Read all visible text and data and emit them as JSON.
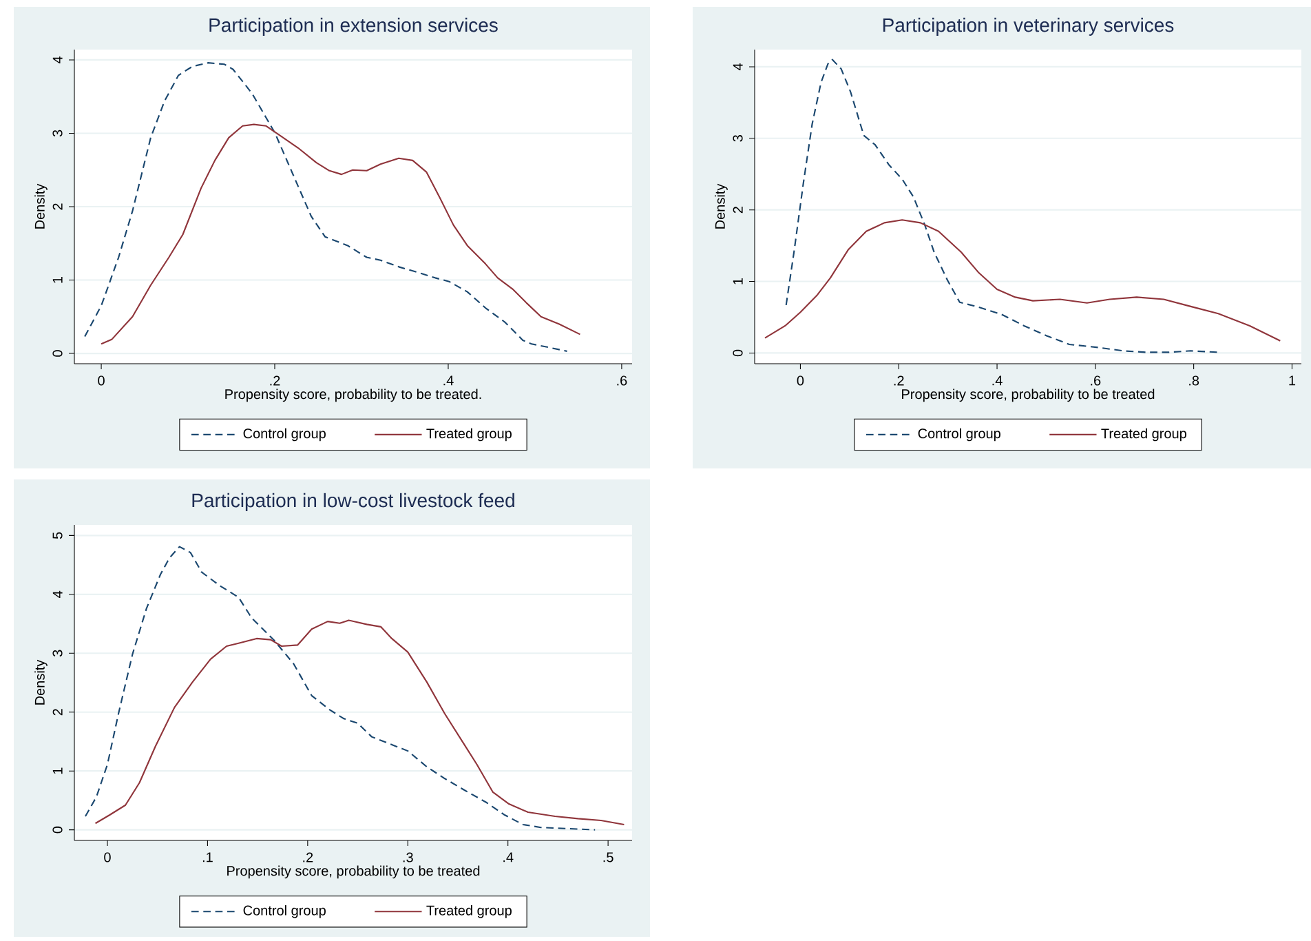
{
  "chart_data": [
    {
      "type": "line",
      "title": "Participation in extension services",
      "xlabel": "Propensity score, probability to be treated.",
      "ylabel": "Density",
      "xlim": [
        -0.031,
        0.612
      ],
      "ylim": [
        -0.14,
        4.14
      ],
      "xticks": [
        0,
        {
          "value": 0.2,
          "label": ".2"
        },
        {
          "value": 0.4,
          "label": ".4"
        },
        {
          "value": 0.6,
          "label": ".6"
        }
      ],
      "yticks": [
        0,
        1,
        2,
        3,
        4
      ],
      "grid": "y",
      "legend": "bottom",
      "marker": "none",
      "series": [
        {
          "name": "Control group",
          "color": "#1a476f",
          "line_style": "dashed",
          "x": [
            -0.019,
            0,
            0.02,
            0.036,
            0.057,
            0.073,
            0.089,
            0.105,
            0.123,
            0.142,
            0.152,
            0.174,
            0.2,
            0.221,
            0.242,
            0.258,
            0.284,
            0.306,
            0.322,
            0.343,
            0.369,
            0.385,
            0.401,
            0.422,
            0.443,
            0.465,
            0.486,
            0.496,
            0.517,
            0.537
          ],
          "values": [
            0.23,
            0.65,
            1.31,
            1.94,
            2.94,
            3.44,
            3.79,
            3.91,
            3.96,
            3.94,
            3.87,
            3.54,
            3.01,
            2.44,
            1.87,
            1.59,
            1.47,
            1.31,
            1.27,
            1.18,
            1.09,
            1.03,
            0.98,
            0.84,
            0.62,
            0.43,
            0.18,
            0.13,
            0.08,
            0.03
          ]
        },
        {
          "name": "Treated group",
          "color": "#90353b",
          "line_style": "solid",
          "x": [
            0,
            0.012,
            0.036,
            0.057,
            0.078,
            0.094,
            0.115,
            0.131,
            0.147,
            0.163,
            0.176,
            0.19,
            0.206,
            0.227,
            0.248,
            0.263,
            0.277,
            0.29,
            0.306,
            0.322,
            0.343,
            0.359,
            0.375,
            0.39,
            0.406,
            0.422,
            0.443,
            0.457,
            0.475,
            0.491,
            0.507,
            0.528,
            0.552
          ],
          "values": [
            0.13,
            0.19,
            0.5,
            0.93,
            1.31,
            1.62,
            2.25,
            2.63,
            2.94,
            3.1,
            3.12,
            3.1,
            2.97,
            2.8,
            2.6,
            2.49,
            2.44,
            2.5,
            2.49,
            2.58,
            2.66,
            2.63,
            2.47,
            2.13,
            1.75,
            1.47,
            1.22,
            1.03,
            0.87,
            0.68,
            0.5,
            0.4,
            0.26
          ]
        }
      ]
    },
    {
      "type": "line",
      "title": "Participation in veterinary services",
      "xlabel": "Propensity score, probability to be treated",
      "ylabel": "Density",
      "xlim": [
        -0.093,
        1.019
      ],
      "ylim": [
        -0.15,
        4.24
      ],
      "xticks": [
        0,
        {
          "value": 0.2,
          "label": ".2"
        },
        {
          "value": 0.4,
          "label": ".4"
        },
        {
          "value": 0.6,
          "label": ".6"
        },
        {
          "value": 0.8,
          "label": ".8"
        },
        1
      ],
      "yticks": [
        0,
        1,
        2,
        3,
        4
      ],
      "grid": "y",
      "legend": "bottom",
      "marker": "none",
      "series": [
        {
          "name": "Control group",
          "color": "#1a476f",
          "line_style": "dashed",
          "x": [
            -0.029,
            -0.013,
            0.006,
            0.024,
            0.042,
            0.056,
            0.065,
            0.083,
            0.102,
            0.129,
            0.152,
            0.18,
            0.207,
            0.23,
            0.253,
            0.272,
            0.299,
            0.324,
            0.363,
            0.409,
            0.455,
            0.501,
            0.547,
            0.602,
            0.657,
            0.703,
            0.749,
            0.794,
            0.85
          ],
          "values": [
            0.67,
            1.41,
            2.37,
            3.2,
            3.78,
            4.04,
            4.1,
            3.97,
            3.65,
            3.04,
            2.91,
            2.63,
            2.43,
            2.18,
            1.79,
            1.41,
            1.02,
            0.71,
            0.64,
            0.54,
            0.38,
            0.24,
            0.12,
            0.08,
            0.03,
            0.01,
            0.01,
            0.03,
            0.01
          ]
        },
        {
          "name": "Treated group",
          "color": "#90353b",
          "line_style": "solid",
          "x": [
            -0.072,
            -0.031,
            0,
            0.033,
            0.061,
            0.097,
            0.134,
            0.171,
            0.207,
            0.244,
            0.281,
            0.327,
            0.363,
            0.4,
            0.437,
            0.473,
            0.528,
            0.583,
            0.629,
            0.684,
            0.739,
            0.794,
            0.85,
            0.914,
            0.976
          ],
          "values": [
            0.21,
            0.38,
            0.57,
            0.8,
            1.05,
            1.44,
            1.7,
            1.82,
            1.86,
            1.82,
            1.7,
            1.41,
            1.12,
            0.89,
            0.78,
            0.73,
            0.75,
            0.7,
            0.75,
            0.78,
            0.75,
            0.65,
            0.55,
            0.38,
            0.17
          ]
        }
      ]
    },
    {
      "type": "line",
      "title": "Participation in low-cost livestock feed",
      "xlabel": "Propensity score, probability to be treated",
      "ylabel": "Density",
      "xlim": [
        -0.033,
        0.524
      ],
      "ylim": [
        -0.18,
        5.18
      ],
      "xticks": [
        0,
        {
          "value": 0.1,
          "label": ".1"
        },
        {
          "value": 0.2,
          "label": ".2"
        },
        {
          "value": 0.3,
          "label": ".3"
        },
        {
          "value": 0.4,
          "label": ".4"
        },
        {
          "value": 0.5,
          "label": ".5"
        }
      ],
      "yticks": [
        0,
        1,
        2,
        3,
        4,
        5
      ],
      "grid": "y",
      "legend": "bottom",
      "marker": "none",
      "series": [
        {
          "name": "Control group",
          "color": "#1a476f",
          "line_style": "dashed",
          "x": [
            -0.022,
            -0.011,
            0,
            0.011,
            0.025,
            0.039,
            0.053,
            0.062,
            0.072,
            0.083,
            0.094,
            0.112,
            0.131,
            0.144,
            0.167,
            0.186,
            0.204,
            0.222,
            0.236,
            0.25,
            0.264,
            0.282,
            0.3,
            0.319,
            0.337,
            0.356,
            0.378,
            0.397,
            0.415,
            0.433,
            0.461,
            0.487
          ],
          "values": [
            0.23,
            0.56,
            1.11,
            1.97,
            2.98,
            3.76,
            4.34,
            4.62,
            4.81,
            4.71,
            4.38,
            4.15,
            3.95,
            3.6,
            3.21,
            2.82,
            2.28,
            2.04,
            1.89,
            1.81,
            1.58,
            1.46,
            1.34,
            1.07,
            0.87,
            0.68,
            0.47,
            0.25,
            0.09,
            0.04,
            0.02,
            0
          ]
        },
        {
          "name": "Treated group",
          "color": "#90353b",
          "line_style": "solid",
          "x": [
            -0.012,
            0.002,
            0.018,
            0.032,
            0.048,
            0.067,
            0.085,
            0.103,
            0.119,
            0.131,
            0.149,
            0.163,
            0.174,
            0.19,
            0.204,
            0.22,
            0.232,
            0.241,
            0.259,
            0.273,
            0.284,
            0.3,
            0.319,
            0.337,
            0.356,
            0.369,
            0.385,
            0.401,
            0.42,
            0.447,
            0.47,
            0.493,
            0.516
          ],
          "values": [
            0.11,
            0.25,
            0.42,
            0.8,
            1.42,
            2.08,
            2.51,
            2.9,
            3.12,
            3.17,
            3.25,
            3.23,
            3.12,
            3.14,
            3.41,
            3.54,
            3.51,
            3.56,
            3.49,
            3.45,
            3.25,
            3.02,
            2.51,
            1.97,
            1.46,
            1.11,
            0.64,
            0.44,
            0.3,
            0.23,
            0.19,
            0.16,
            0.09
          ]
        }
      ]
    }
  ]
}
